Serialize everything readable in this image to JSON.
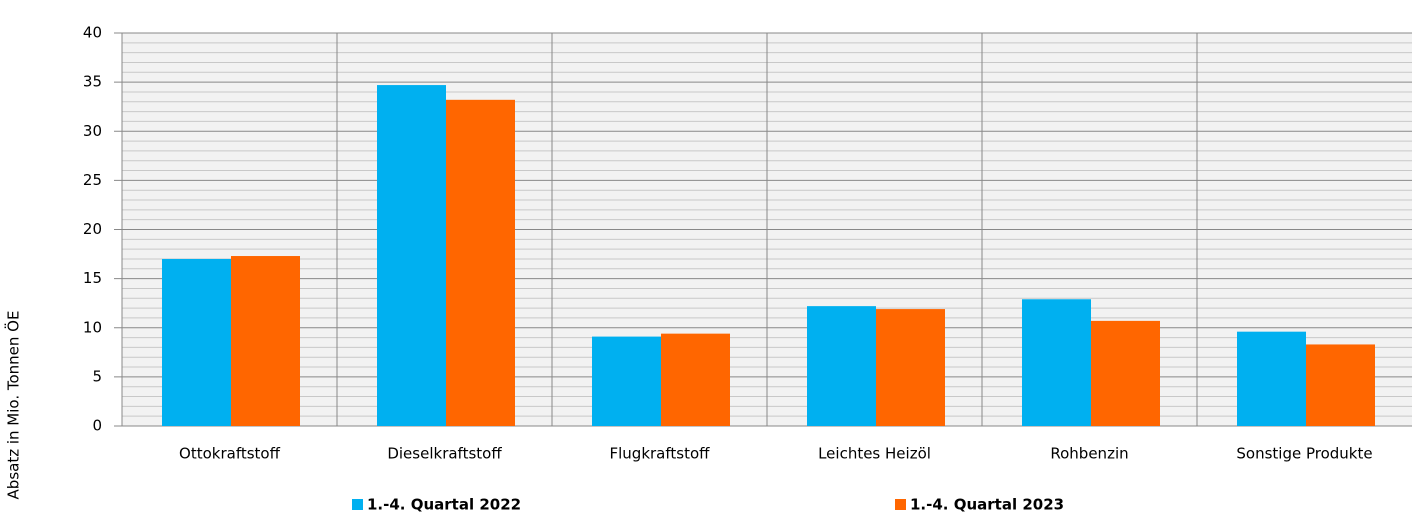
{
  "chart_data": {
    "type": "bar",
    "y_axis_label": "Absatz in Mio. Tonnen ÖE",
    "categories": [
      "Ottokraftstoff",
      "Dieselkraftstoff",
      "Flugkraftstoff",
      "Leichtes Heizöl",
      "Rohbenzin",
      "Sonstige Produkte"
    ],
    "series": [
      {
        "name": "1.-4. Quartal 2022",
        "color": "#00b0f0",
        "values": [
          17.0,
          34.7,
          9.1,
          12.2,
          12.9,
          9.6
        ]
      },
      {
        "name": "1.-4. Quartal 2023",
        "color": "#ff6600",
        "values": [
          17.3,
          33.2,
          9.4,
          11.9,
          10.7,
          8.3
        ]
      }
    ],
    "ylim": [
      0,
      40
    ],
    "yticks": [
      0,
      5,
      10,
      15,
      20,
      25,
      30,
      35,
      40
    ],
    "grid": true,
    "legend": "bottom"
  }
}
